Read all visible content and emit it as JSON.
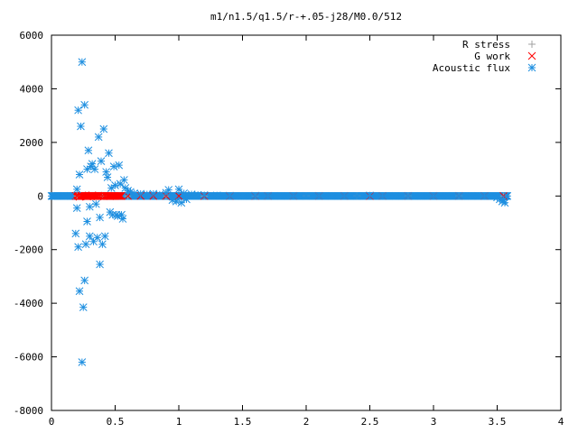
{
  "chart_data": {
    "type": "scatter",
    "title": "m1/n1.5/q1.5/r-+.05-j28/M0.0/512",
    "xlabel": "",
    "ylabel": "",
    "xlim": [
      0,
      4
    ],
    "ylim": [
      -8000,
      6000
    ],
    "x_ticks": [
      "0",
      "0.5",
      "1",
      "1.5",
      "2",
      "2.5",
      "3",
      "3.5",
      "4"
    ],
    "x_tick_values": [
      0,
      0.5,
      1,
      1.5,
      2,
      2.5,
      3,
      3.5,
      4
    ],
    "y_ticks": [
      "6000",
      "4000",
      "2000",
      "0",
      "-2000",
      "-4000",
      "-6000",
      "-8000"
    ],
    "y_tick_values": [
      6000,
      4000,
      2000,
      0,
      -2000,
      -4000,
      -6000,
      -8000
    ],
    "grid": false,
    "legend_position": "top-right",
    "series": [
      {
        "name": "R stress",
        "marker": "plus",
        "color": "#a0a0a0",
        "points": [
          [
            0.2,
            0
          ],
          [
            0.4,
            0
          ],
          [
            0.6,
            0
          ],
          [
            0.9,
            0
          ],
          [
            1.2,
            0
          ],
          [
            1.6,
            0
          ],
          [
            2.0,
            0
          ],
          [
            2.4,
            0
          ],
          [
            2.8,
            0
          ],
          [
            3.2,
            0
          ],
          [
            3.55,
            0
          ]
        ]
      },
      {
        "name": "G work",
        "marker": "cross",
        "color": "#ff0000",
        "points": [
          [
            0.2,
            0
          ],
          [
            0.22,
            -30
          ],
          [
            0.24,
            20
          ],
          [
            0.26,
            0
          ],
          [
            0.28,
            -20
          ],
          [
            0.3,
            0
          ],
          [
            0.32,
            25
          ],
          [
            0.34,
            0
          ],
          [
            0.36,
            -15
          ],
          [
            0.38,
            0
          ],
          [
            0.4,
            0
          ],
          [
            0.42,
            10
          ],
          [
            0.44,
            0
          ],
          [
            0.46,
            -10
          ],
          [
            0.48,
            0
          ],
          [
            0.5,
            0
          ],
          [
            0.55,
            0
          ],
          [
            0.6,
            0
          ],
          [
            0.7,
            0
          ],
          [
            0.8,
            0
          ],
          [
            0.9,
            0
          ],
          [
            1.0,
            0
          ],
          [
            1.2,
            0
          ],
          [
            1.4,
            0
          ],
          [
            1.6,
            0
          ],
          [
            1.7,
            0
          ],
          [
            1.9,
            0
          ],
          [
            2.1,
            0
          ],
          [
            2.3,
            0
          ],
          [
            2.5,
            0
          ],
          [
            2.6,
            0
          ],
          [
            2.8,
            0
          ],
          [
            3.0,
            0
          ],
          [
            3.2,
            0
          ],
          [
            3.4,
            0
          ],
          [
            3.55,
            0
          ]
        ]
      },
      {
        "name": "Acoustic flux",
        "marker": "star",
        "color": "#1e8fe0",
        "points": [
          [
            0.19,
            -1400
          ],
          [
            0.2,
            250
          ],
          [
            0.2,
            -450
          ],
          [
            0.21,
            -1900
          ],
          [
            0.21,
            3200
          ],
          [
            0.22,
            800
          ],
          [
            0.22,
            -3550
          ],
          [
            0.23,
            2600
          ],
          [
            0.24,
            5000
          ],
          [
            0.24,
            -6200
          ],
          [
            0.25,
            -4150
          ],
          [
            0.26,
            3400
          ],
          [
            0.26,
            -3150
          ],
          [
            0.27,
            -1800
          ],
          [
            0.28,
            1000
          ],
          [
            0.28,
            -950
          ],
          [
            0.29,
            1700
          ],
          [
            0.3,
            -400
          ],
          [
            0.3,
            -1500
          ],
          [
            0.31,
            1100
          ],
          [
            0.32,
            1200
          ],
          [
            0.33,
            -1700
          ],
          [
            0.34,
            1000
          ],
          [
            0.35,
            -300
          ],
          [
            0.36,
            -1550
          ],
          [
            0.37,
            2200
          ],
          [
            0.38,
            -800
          ],
          [
            0.38,
            -2550
          ],
          [
            0.39,
            1300
          ],
          [
            0.4,
            -1800
          ],
          [
            0.41,
            2500
          ],
          [
            0.42,
            -1500
          ],
          [
            0.43,
            900
          ],
          [
            0.44,
            700
          ],
          [
            0.45,
            1600
          ],
          [
            0.46,
            -600
          ],
          [
            0.47,
            300
          ],
          [
            0.48,
            -700
          ],
          [
            0.49,
            1100
          ],
          [
            0.5,
            400
          ],
          [
            0.51,
            -700
          ],
          [
            0.52,
            -750
          ],
          [
            0.53,
            1150
          ],
          [
            0.54,
            450
          ],
          [
            0.55,
            -700
          ],
          [
            0.56,
            -850
          ],
          [
            0.57,
            600
          ],
          [
            0.58,
            300
          ],
          [
            0.6,
            200
          ],
          [
            0.62,
            150
          ],
          [
            0.65,
            100
          ],
          [
            0.7,
            80
          ],
          [
            0.75,
            60
          ],
          [
            0.8,
            80
          ],
          [
            0.85,
            50
          ],
          [
            0.9,
            120
          ],
          [
            0.92,
            230
          ],
          [
            0.95,
            -150
          ],
          [
            0.98,
            -200
          ],
          [
            1.0,
            250
          ],
          [
            1.02,
            -250
          ],
          [
            1.04,
            100
          ],
          [
            1.06,
            -120
          ],
          [
            1.1,
            60
          ],
          [
            1.15,
            40
          ],
          [
            1.2,
            30
          ],
          [
            1.3,
            20
          ],
          [
            1.4,
            10
          ],
          [
            1.5,
            0
          ],
          [
            1.6,
            10
          ],
          [
            1.7,
            0
          ],
          [
            1.8,
            0
          ],
          [
            1.9,
            0
          ],
          [
            2.0,
            0
          ],
          [
            2.1,
            0
          ],
          [
            2.2,
            0
          ],
          [
            2.3,
            0
          ],
          [
            2.4,
            0
          ],
          [
            2.5,
            20
          ],
          [
            2.6,
            0
          ],
          [
            2.7,
            0
          ],
          [
            2.8,
            0
          ],
          [
            2.9,
            0
          ],
          [
            3.0,
            0
          ],
          [
            3.1,
            0
          ],
          [
            3.2,
            0
          ],
          [
            3.3,
            0
          ],
          [
            3.4,
            0
          ],
          [
            3.5,
            -50
          ],
          [
            3.52,
            -120
          ],
          [
            3.54,
            -200
          ],
          [
            3.55,
            -150
          ],
          [
            3.56,
            -250
          ],
          [
            3.58,
            0
          ],
          [
            0.05,
            0
          ],
          [
            0.1,
            0
          ],
          [
            0.15,
            0
          ]
        ]
      }
    ]
  }
}
